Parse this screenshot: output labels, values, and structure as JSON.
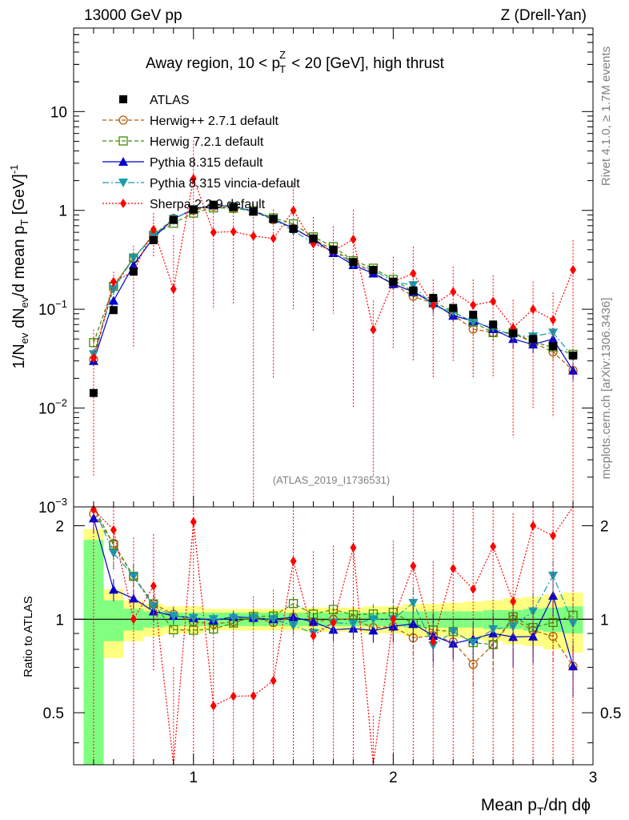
{
  "header": {
    "left": "13000 GeV pp",
    "right": "Z (Drell-Yan)",
    "title_prefix": "Away region, 10 < p",
    "title_sup": "Z",
    "title_sub": "T",
    "title_suffix": " < 20 [GeV], high thrust"
  },
  "side_labels": {
    "top": "Rivet 4.1.0, ≥ 1.7M events",
    "bottom": "mcplots.cern.ch [arXiv:1306.3436]"
  },
  "watermark": "(ATLAS_2019_I1736531)",
  "axes": {
    "ylabel_main": "1/N_ev dN_ev/d mean p_T [GeV]^-1",
    "ylabel_main_parts": {
      "a": "1/N",
      "a_sub": "ev",
      "b": " dN",
      "b_sub": "ev",
      "c": "/d mean p",
      "c_sub": "T",
      "d": " [GeV]",
      "d_sup": "-1"
    },
    "ylabel_ratio": "Ratio to ATLAS",
    "xlabel": "Mean p_T/dη dϕ",
    "xlabel_parts": {
      "a": "Mean p",
      "a_sub": "T",
      "b": "/dη dϕ"
    },
    "main_ticks": [
      {
        "v": 0.001,
        "base": "10",
        "exp": "−3"
      },
      {
        "v": 0.01,
        "base": "10",
        "exp": "−2"
      },
      {
        "v": 0.1,
        "base": "10",
        "exp": "−1"
      },
      {
        "v": 1,
        "base": "1",
        "exp": ""
      },
      {
        "v": 10,
        "base": "10",
        "exp": ""
      }
    ],
    "ratio_ticks": [
      {
        "v": 0.5,
        "label": "0.5"
      },
      {
        "v": 1,
        "label": "1"
      },
      {
        "v": 2,
        "label": "2"
      }
    ],
    "x_ticks": [
      {
        "v": 1,
        "label": "1"
      },
      {
        "v": 2,
        "label": "2"
      },
      {
        "v": 3,
        "label": "3"
      }
    ]
  },
  "legend": [
    {
      "name": "ATLAS",
      "color": "#000000"
    },
    {
      "name": "Herwig++ 2.7.1 default",
      "color": "#b35900"
    },
    {
      "name": "Herwig 7.2.1 default",
      "color": "#3d8c00"
    },
    {
      "name": "Pythia 8.315 default",
      "color": "#0000cc"
    },
    {
      "name": "Pythia 8.315 vincia-default",
      "color": "#1a9bb0"
    },
    {
      "name": "Sherpa 2.2.9 default",
      "color": "#ff0000"
    }
  ],
  "chart_data": {
    "type": "scatter",
    "title": "Away region, 10 < pT^Z < 20 [GeV], high thrust",
    "xlabel": "Mean pT/dη dϕ",
    "ylabel": "1/Nev dNev/d mean pT [GeV]^-1",
    "xlim": [
      0.4,
      3.0
    ],
    "ylim": [
      0.001,
      70
    ],
    "ylog": true,
    "ratio_ylim": [
      0.34,
      2.3
    ],
    "ratio_ylog": true,
    "x": [
      0.5,
      0.6,
      0.7,
      0.8,
      0.9,
      1.0,
      1.1,
      1.2,
      1.3,
      1.4,
      1.5,
      1.6,
      1.7,
      1.8,
      1.9,
      2.0,
      2.1,
      2.2,
      2.3,
      2.4,
      2.5,
      2.6,
      2.7,
      2.8,
      2.9
    ],
    "data": {
      "name": "ATLAS",
      "values": [
        0.0142,
        0.098,
        0.24,
        0.5,
        0.8,
        1.02,
        1.14,
        1.08,
        0.97,
        0.82,
        0.65,
        0.52,
        0.4,
        0.3,
        0.25,
        0.19,
        0.155,
        0.13,
        0.103,
        0.088,
        0.07,
        0.057,
        0.05,
        0.042,
        0.034
      ],
      "band_stat": [
        0.8,
        0.15,
        0.08,
        0.06,
        0.05,
        0.05,
        0.05,
        0.05,
        0.05,
        0.05,
        0.05,
        0.05,
        0.05,
        0.05,
        0.05,
        0.05,
        0.06,
        0.06,
        0.06,
        0.06,
        0.07,
        0.07,
        0.08,
        0.09,
        0.1
      ],
      "band_total": [
        0.95,
        0.25,
        0.15,
        0.12,
        0.1,
        0.1,
        0.08,
        0.08,
        0.08,
        0.08,
        0.08,
        0.09,
        0.09,
        0.09,
        0.1,
        0.1,
        0.12,
        0.12,
        0.13,
        0.14,
        0.15,
        0.17,
        0.18,
        0.2,
        0.22
      ]
    },
    "series": [
      {
        "name": "Herwig++ 2.7.1 default",
        "marker": "circle-open",
        "dash": "5,3",
        "values": [
          0.031,
          0.172,
          0.33,
          0.56,
          0.83,
          1.0,
          1.1,
          1.06,
          0.98,
          0.8,
          0.66,
          0.51,
          0.4,
          0.3,
          0.235,
          0.18,
          0.135,
          0.115,
          0.087,
          0.063,
          0.058,
          0.057,
          0.046,
          0.037,
          0.024
        ],
        "err": [
          0.004,
          0.02,
          0.03,
          0.04,
          0.05,
          0.05,
          0.05,
          0.05,
          0.05,
          0.04,
          0.04,
          0.03,
          0.03,
          0.02,
          0.02,
          0.02,
          0.02,
          0.02,
          0.01,
          0.01,
          0.01,
          0.01,
          0.008,
          0.007,
          0.005
        ]
      },
      {
        "name": "Herwig 7.2.1 default",
        "marker": "square-open",
        "dash": "5,3",
        "values": [
          0.046,
          0.17,
          0.33,
          0.56,
          0.74,
          0.94,
          1.06,
          1.05,
          0.99,
          0.84,
          0.73,
          0.54,
          0.43,
          0.31,
          0.26,
          0.2,
          0.15,
          0.12,
          0.094,
          0.074,
          0.058,
          0.058,
          0.047,
          0.041,
          0.035
        ],
        "err": [
          0.005,
          0.02,
          0.03,
          0.04,
          0.05,
          0.05,
          0.05,
          0.05,
          0.05,
          0.04,
          0.04,
          0.03,
          0.03,
          0.02,
          0.02,
          0.02,
          0.02,
          0.02,
          0.01,
          0.01,
          0.01,
          0.01,
          0.008,
          0.007,
          0.005
        ]
      },
      {
        "name": "Pythia 8.315 default",
        "marker": "triangle-up",
        "dash": "",
        "values": [
          0.03,
          0.122,
          0.28,
          0.53,
          0.82,
          1.03,
          1.13,
          1.1,
          0.98,
          0.82,
          0.66,
          0.51,
          0.37,
          0.28,
          0.23,
          0.18,
          0.15,
          0.115,
          0.086,
          0.076,
          0.063,
          0.05,
          0.044,
          0.05,
          0.024
        ],
        "err": [
          0.003,
          0.01,
          0.02,
          0.04,
          0.05,
          0.05,
          0.05,
          0.05,
          0.05,
          0.04,
          0.04,
          0.03,
          0.03,
          0.02,
          0.02,
          0.02,
          0.02,
          0.02,
          0.01,
          0.01,
          0.01,
          0.01,
          0.008,
          0.007,
          0.005
        ]
      },
      {
        "name": "Pythia 8.315 vincia-default",
        "marker": "triangle-down",
        "dash": "8,3,2,3",
        "values": [
          0.035,
          0.16,
          0.33,
          0.55,
          0.82,
          1.03,
          1.14,
          1.09,
          0.98,
          0.82,
          0.62,
          0.47,
          0.39,
          0.29,
          0.25,
          0.19,
          0.175,
          0.107,
          0.094,
          0.074,
          0.065,
          0.054,
          0.053,
          0.058,
          0.033
        ],
        "err": [
          0.004,
          0.02,
          0.03,
          0.04,
          0.05,
          0.05,
          0.05,
          0.05,
          0.05,
          0.04,
          0.04,
          0.03,
          0.03,
          0.02,
          0.02,
          0.02,
          0.02,
          0.02,
          0.01,
          0.01,
          0.01,
          0.01,
          0.008,
          0.007,
          0.005
        ]
      },
      {
        "name": "Sherpa 2.2.9 default",
        "marker": "diamond",
        "dash": "2,2",
        "values": [
          0.032,
          0.19,
          0.24,
          0.64,
          0.16,
          2.1,
          0.6,
          0.61,
          0.55,
          0.52,
          1.0,
          0.46,
          0.39,
          0.51,
          0.062,
          0.19,
          0.23,
          0.11,
          0.15,
          0.11,
          0.12,
          0.065,
          0.1,
          0.078,
          0.25
        ],
        "err": [
          0.03,
          0.05,
          0.2,
          0.3,
          0.4,
          3.0,
          0.5,
          0.5,
          0.6,
          0.5,
          0.9,
          0.4,
          0.3,
          0.5,
          0.06,
          0.15,
          0.2,
          0.09,
          0.12,
          0.09,
          0.1,
          0.06,
          0.09,
          0.07,
          0.25
        ]
      }
    ]
  }
}
